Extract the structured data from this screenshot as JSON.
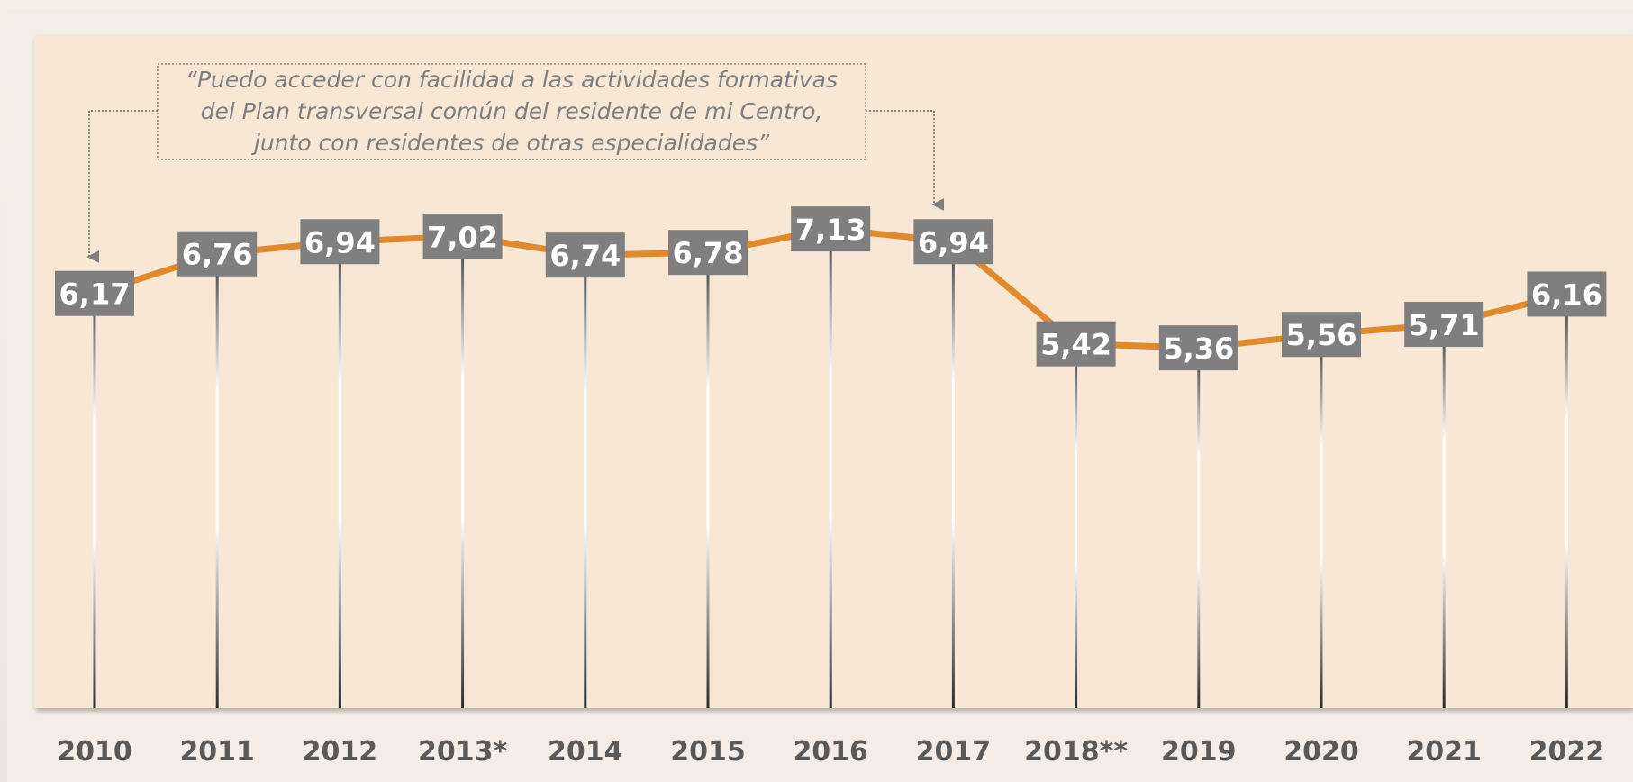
{
  "chart_data": {
    "type": "line",
    "annotation": [
      "“Puedo acceder con facilidad a las actividades formativas",
      "del Plan transversal común del residente de mi Centro,",
      "junto con residentes de otras especialidades”"
    ],
    "categories": [
      "2010",
      "2011",
      "2012",
      "2013*",
      "2014",
      "2015",
      "2016",
      "2017",
      "2018**",
      "2019",
      "2020",
      "2021",
      "2022"
    ],
    "values": [
      6.17,
      6.76,
      6.94,
      7.02,
      6.74,
      6.78,
      7.13,
      6.94,
      5.42,
      5.36,
      5.56,
      5.71,
      6.16
    ],
    "value_labels": [
      "6,17",
      "6,76",
      "6,94",
      "7,02",
      "6,74",
      "6,78",
      "7,13",
      "6,94",
      "5,42",
      "5,36",
      "5,56",
      "5,71",
      "6,16"
    ],
    "color": "#e08a2c",
    "ylim": [
      0,
      10
    ]
  }
}
